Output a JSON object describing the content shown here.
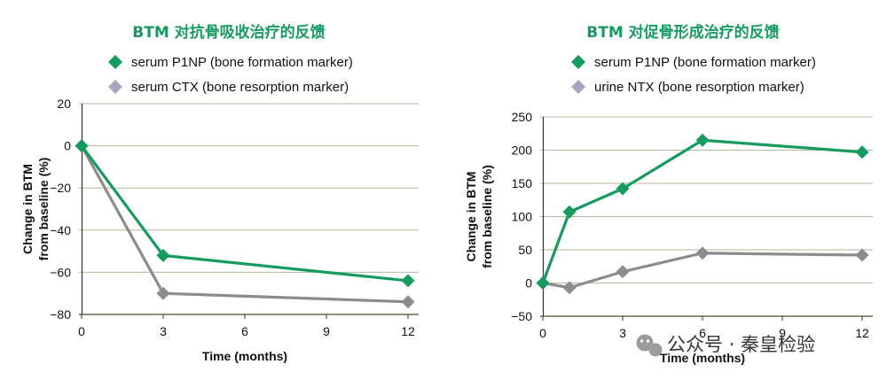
{
  "chart_data": [
    {
      "type": "line",
      "title": "BTM 对抗骨吸收治疗的反馈",
      "xlabel": "Time (months)",
      "ylabel": "Change in BTM from baseline (%)",
      "x_ticks": [
        0,
        3,
        6,
        9,
        12
      ],
      "y_ticks": [
        20,
        0,
        -20,
        -40,
        -60,
        -80
      ],
      "xlim": [
        0,
        12
      ],
      "ylim": [
        -80,
        20
      ],
      "grid": "horizontal",
      "legend": "top",
      "series": [
        {
          "name": "serum P1NP (bone formation marker)",
          "color": "#169b5f",
          "marker": "diamond",
          "x": [
            0,
            3,
            12
          ],
          "y": [
            0,
            -52,
            -64
          ]
        },
        {
          "name": "serum CTX (bone resorption marker)",
          "color": "#8c8c8c",
          "legend_color": "#a9a5bf",
          "marker": "diamond",
          "x": [
            0,
            3,
            12
          ],
          "y": [
            0,
            -70,
            -74
          ]
        }
      ]
    },
    {
      "type": "line",
      "title": "BTM 对促骨形成治疗的反馈",
      "xlabel": "Time (months)",
      "ylabel": "Change in BTM from baseline (%)",
      "x_ticks": [
        0,
        3,
        6,
        9,
        12
      ],
      "y_ticks": [
        250,
        200,
        150,
        100,
        50,
        0,
        -50
      ],
      "xlim": [
        0,
        12
      ],
      "ylim": [
        -50,
        250
      ],
      "grid": "horizontal",
      "legend": "top",
      "series": [
        {
          "name": "serum P1NP (bone formation marker)",
          "color": "#169b5f",
          "marker": "diamond",
          "x": [
            0,
            1,
            3,
            6,
            12
          ],
          "y": [
            0,
            107,
            142,
            215,
            197
          ]
        },
        {
          "name": "urine NTX (bone resorption marker)",
          "color": "#8c8c8c",
          "legend_color": "#a9a5bf",
          "marker": "diamond",
          "x": [
            0,
            1,
            3,
            6,
            12
          ],
          "y": [
            0,
            -7,
            17,
            45,
            42
          ]
        }
      ]
    }
  ],
  "colors": {
    "title": "#169b5f",
    "grid": "#b9b5a2",
    "axis": "#333333"
  },
  "watermark": {
    "icon": "wechat-icon",
    "text": "公众号 · 秦皇检验"
  }
}
